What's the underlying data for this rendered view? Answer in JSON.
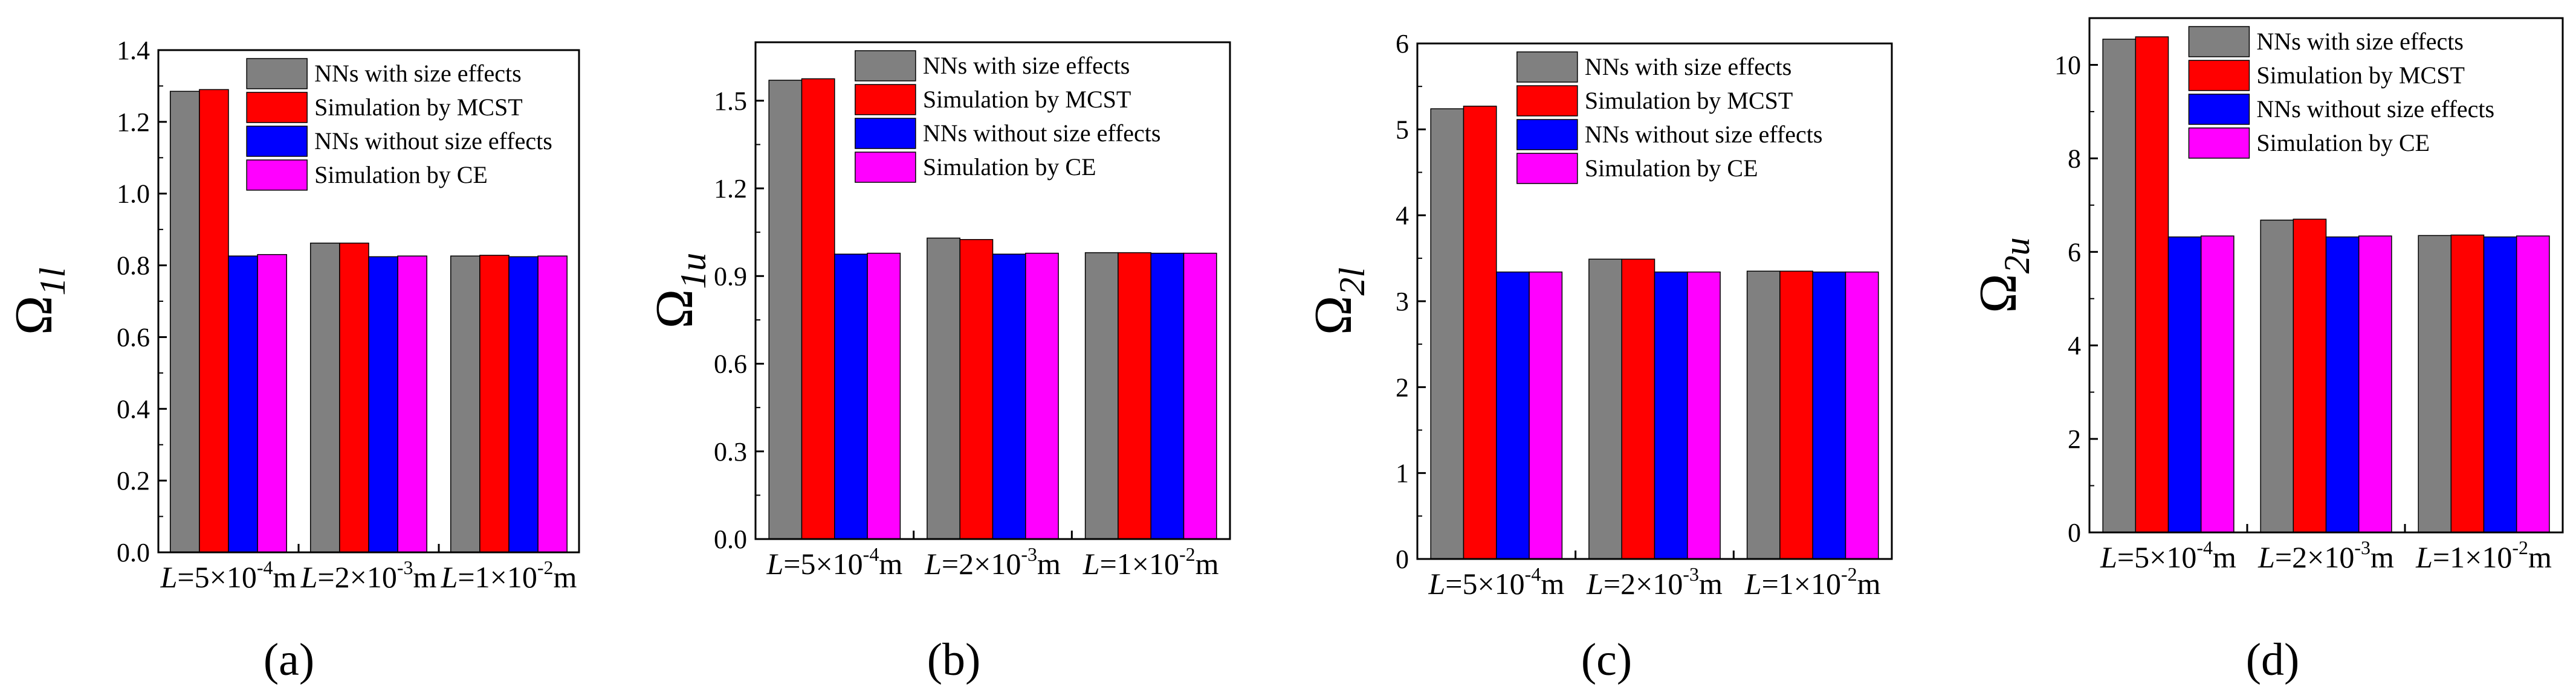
{
  "legend": [
    {
      "name": "NNs with size effects",
      "color": "#808080"
    },
    {
      "name": "Simulation by MCST",
      "color": "#ff0000"
    },
    {
      "name": "NNs without size effects",
      "color": "#0000ff"
    },
    {
      "name": "Simulation by CE",
      "color": "#ff00ff"
    }
  ],
  "chart_data": [
    {
      "type": "bar",
      "panel_label": "(a)",
      "ylabel": {
        "main": "Ω",
        "sub": "1l"
      },
      "categories": [
        {
          "pre": "L",
          "mid": "=5×10",
          "sup": "-4",
          "post": "m"
        },
        {
          "pre": "L",
          "mid": "=2×10",
          "sup": "-3",
          "post": "m"
        },
        {
          "pre": "L",
          "mid": "=1×10",
          "sup": "-2",
          "post": "m"
        }
      ],
      "ylim": [
        0,
        1.4
      ],
      "yticks": [
        "0.0",
        "0.2",
        "0.4",
        "0.6",
        "0.8",
        "1.0",
        "1.2",
        "1.4"
      ],
      "series": [
        {
          "name": "NNs with size effects",
          "values": [
            1.285,
            0.862,
            0.826
          ]
        },
        {
          "name": "Simulation by MCST",
          "values": [
            1.29,
            0.862,
            0.828
          ]
        },
        {
          "name": "NNs without size effects",
          "values": [
            0.826,
            0.824,
            0.824
          ]
        },
        {
          "name": "Simulation by CE",
          "values": [
            0.83,
            0.826,
            0.826
          ]
        }
      ]
    },
    {
      "type": "bar",
      "panel_label": "(b)",
      "ylabel": {
        "main": "Ω",
        "sub": "1u"
      },
      "categories": [
        {
          "pre": "L",
          "mid": "=5×10",
          "sup": "-4",
          "post": "m"
        },
        {
          "pre": "L",
          "mid": "=2×10",
          "sup": "-3",
          "post": "m"
        },
        {
          "pre": "L",
          "mid": "=1×10",
          "sup": "-2",
          "post": "m"
        }
      ],
      "ylim": [
        0,
        1.7
      ],
      "yticks": [
        "0.0",
        "0.3",
        "0.6",
        "0.9",
        "1.2",
        "1.5"
      ],
      "series": [
        {
          "name": "NNs with size effects",
          "values": [
            1.57,
            1.03,
            0.98
          ]
        },
        {
          "name": "Simulation by MCST",
          "values": [
            1.575,
            1.025,
            0.98
          ]
        },
        {
          "name": "NNs without size effects",
          "values": [
            0.975,
            0.975,
            0.978
          ]
        },
        {
          "name": "Simulation by CE",
          "values": [
            0.978,
            0.978,
            0.978
          ]
        }
      ]
    },
    {
      "type": "bar",
      "panel_label": "(c)",
      "ylabel": {
        "main": "Ω",
        "sub": "2l"
      },
      "categories": [
        {
          "pre": "L",
          "mid": "=5×10",
          "sup": "-4",
          "post": "m"
        },
        {
          "pre": "L",
          "mid": "=2×10",
          "sup": "-3",
          "post": "m"
        },
        {
          "pre": "L",
          "mid": "=1×10",
          "sup": "-2",
          "post": "m"
        }
      ],
      "ylim": [
        0,
        6
      ],
      "yticks": [
        "0",
        "1",
        "2",
        "3",
        "4",
        "5",
        "6"
      ],
      "series": [
        {
          "name": "NNs with size effects",
          "values": [
            5.24,
            3.49,
            3.35
          ]
        },
        {
          "name": "Simulation by MCST",
          "values": [
            5.27,
            3.49,
            3.35
          ]
        },
        {
          "name": "NNs without size effects",
          "values": [
            3.34,
            3.34,
            3.34
          ]
        },
        {
          "name": "Simulation by CE",
          "values": [
            3.34,
            3.34,
            3.34
          ]
        }
      ]
    },
    {
      "type": "bar",
      "panel_label": "(d)",
      "ylabel": {
        "main": "Ω",
        "sub": "2u"
      },
      "categories": [
        {
          "pre": "L",
          "mid": "=5×10",
          "sup": "-4",
          "post": "m"
        },
        {
          "pre": "L",
          "mid": "=2×10",
          "sup": "-3",
          "post": "m"
        },
        {
          "pre": "L",
          "mid": "=1×10",
          "sup": "-2",
          "post": "m"
        }
      ],
      "ylim": [
        0,
        11
      ],
      "yticks": [
        "0",
        "2",
        "4",
        "6",
        "8",
        "10"
      ],
      "series": [
        {
          "name": "NNs with size effects",
          "values": [
            10.55,
            6.68,
            6.35
          ]
        },
        {
          "name": "Simulation by MCST",
          "values": [
            10.6,
            6.7,
            6.36
          ]
        },
        {
          "name": "NNs without size effects",
          "values": [
            6.32,
            6.32,
            6.32
          ]
        },
        {
          "name": "Simulation by CE",
          "values": [
            6.34,
            6.34,
            6.34
          ]
        }
      ]
    }
  ]
}
